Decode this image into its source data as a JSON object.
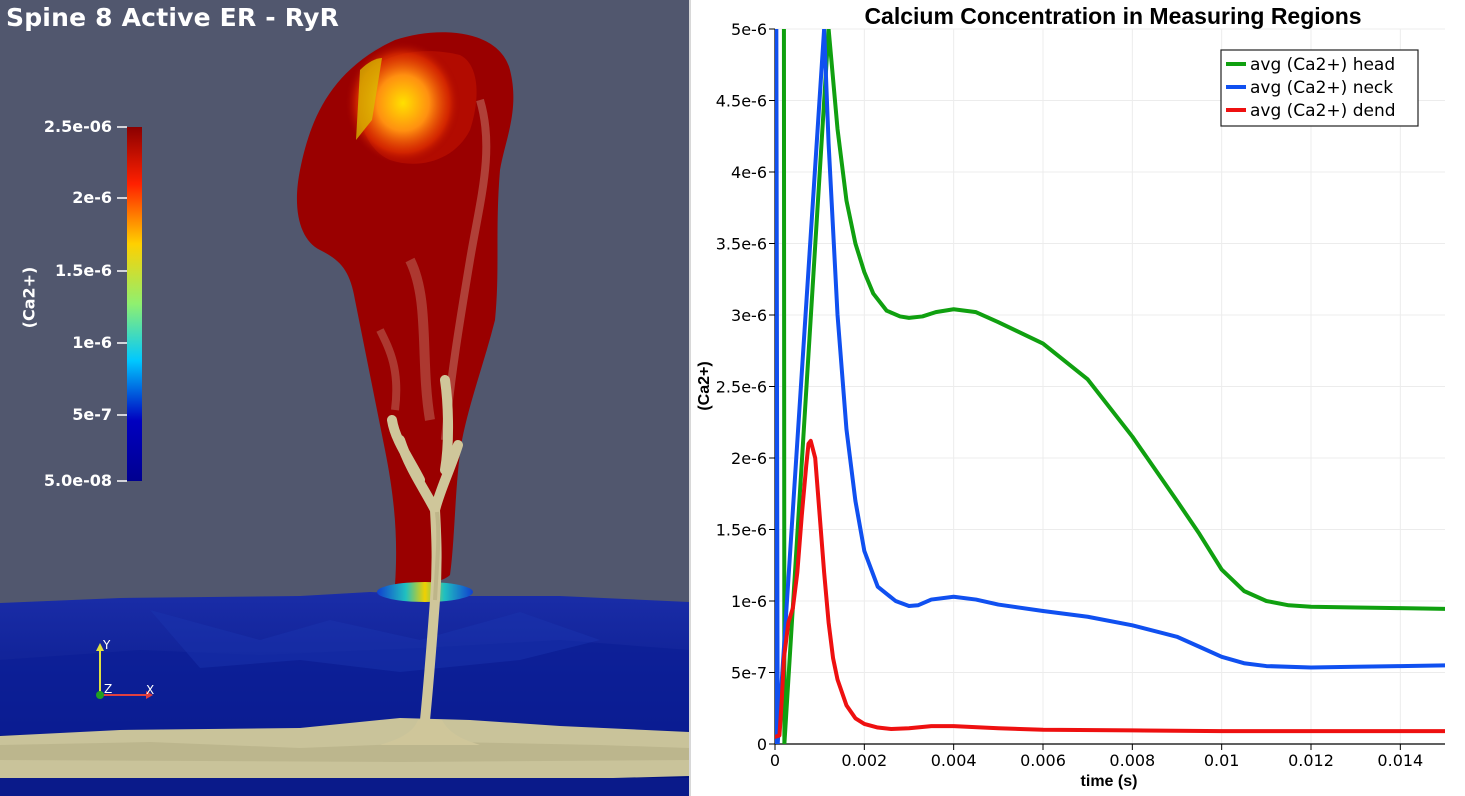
{
  "viewport": {
    "title": "Spine 8 Active ER - RyR",
    "background_color": "#51576e",
    "colorbar": {
      "label": "(Ca2+)",
      "ticks": [
        "2.5e-06",
        "2e-6",
        "1.5e-6",
        "1e-6",
        "5e-7",
        "5.0e-08"
      ],
      "colormap": [
        "#8b0000",
        "#ff2000",
        "#ffd000",
        "#8ff070",
        "#00c8ff",
        "#0000c0",
        "#000090"
      ]
    },
    "orientation_axes": {
      "y": "Y",
      "z": "Z",
      "x": "X"
    }
  },
  "chart_data": {
    "type": "line",
    "title": "Calcium Concentration in Measuring Regions",
    "xlabel": "time (s)",
    "ylabel": "(Ca2+)",
    "xlim": [
      0,
      0.015
    ],
    "ylim": [
      0,
      5e-06
    ],
    "x_ticks": [
      "0",
      "0.002",
      "0.004",
      "0.006",
      "0.008",
      "0.01",
      "0.012",
      "0.014"
    ],
    "y_ticks": [
      "0",
      "5e-7",
      "1e-6",
      "1.5e-6",
      "2e-6",
      "2.5e-6",
      "3e-6",
      "3.5e-6",
      "4e-6",
      "4.5e-6",
      "5e-6"
    ],
    "x_tick_values": [
      0,
      0.002,
      0.004,
      0.006,
      0.008,
      0.01,
      0.012,
      0.014
    ],
    "y_tick_values": [
      0,
      5e-07,
      1e-06,
      1.5e-06,
      2e-06,
      2.5e-06,
      3e-06,
      3.5e-06,
      4e-06,
      4.5e-06,
      5e-06
    ],
    "grid": true,
    "legend_position": "top-right",
    "series": [
      {
        "name": "avg (Ca2+) head",
        "color": "#10a010",
        "x": [
          0.0002,
          0.00021,
          0.0012,
          0.0014,
          0.0016,
          0.0018,
          0.002,
          0.0022,
          0.0025,
          0.0028,
          0.003,
          0.0033,
          0.0036,
          0.004,
          0.0045,
          0.005,
          0.006,
          0.007,
          0.008,
          0.009,
          0.0095,
          0.01,
          0.0105,
          0.011,
          0.0115,
          0.012,
          0.013,
          0.014,
          0.015
        ],
        "y": [
          5e-06,
          0,
          5e-06,
          4.3e-06,
          3.8e-06,
          3.5e-06,
          3.3e-06,
          3.15e-06,
          3.03e-06,
          2.99e-06,
          2.98e-06,
          2.99e-06,
          3.02e-06,
          3.04e-06,
          3.02e-06,
          2.95e-06,
          2.8e-06,
          2.55e-06,
          2.15e-06,
          1.7e-06,
          1.47e-06,
          1.22e-06,
          1.07e-06,
          1e-06,
          9.7e-07,
          9.6e-07,
          9.55e-07,
          9.5e-07,
          9.45e-07
        ]
      },
      {
        "name": "avg (Ca2+) neck",
        "color": "#1050f0",
        "x": [
          0,
          3e-05,
          6e-05,
          0.0011,
          0.0012,
          0.0014,
          0.0016,
          0.0018,
          0.002,
          0.0023,
          0.0027,
          0.003,
          0.0032,
          0.0035,
          0.004,
          0.0045,
          0.005,
          0.006,
          0.007,
          0.008,
          0.009,
          0.0095,
          0.01,
          0.0105,
          0.011,
          0.012,
          0.013,
          0.014,
          0.015
        ],
        "y": [
          0,
          5e-06,
          0,
          5e-06,
          4.2e-06,
          3e-06,
          2.2e-06,
          1.7e-06,
          1.35e-06,
          1.1e-06,
          1e-06,
          9.65e-07,
          9.7e-07,
          1.01e-06,
          1.03e-06,
          1.01e-06,
          9.75e-07,
          9.3e-07,
          8.9e-07,
          8.3e-07,
          7.5e-07,
          6.8e-07,
          6.1e-07,
          5.65e-07,
          5.45e-07,
          5.35e-07,
          5.4e-07,
          5.45e-07,
          5.5e-07
        ]
      },
      {
        "name": "avg (Ca2+) dend",
        "color": "#ee1010",
        "x": [
          0,
          0.0001,
          0.00015,
          0.0002,
          0.0003,
          0.0004,
          0.0005,
          0.0006,
          0.0007,
          0.00075,
          0.0008,
          0.0009,
          0.001,
          0.0011,
          0.0012,
          0.0013,
          0.0014,
          0.0016,
          0.0018,
          0.002,
          0.0023,
          0.0026,
          0.003,
          0.0035,
          0.004,
          0.005,
          0.006,
          0.008,
          0.01,
          0.012,
          0.015
        ],
        "y": [
          5e-08,
          6e-08,
          3e-07,
          6e-07,
          8.5e-07,
          9.5e-07,
          1.2e-06,
          1.6e-06,
          1.95e-06,
          2.1e-06,
          2.12e-06,
          2e-06,
          1.6e-06,
          1.2e-06,
          8.5e-07,
          6e-07,
          4.5e-07,
          2.7e-07,
          1.8e-07,
          1.4e-07,
          1.15e-07,
          1.05e-07,
          1.1e-07,
          1.25e-07,
          1.25e-07,
          1.1e-07,
          1e-07,
          9.5e-08,
          9e-08,
          9e-08,
          9e-08
        ]
      }
    ]
  }
}
